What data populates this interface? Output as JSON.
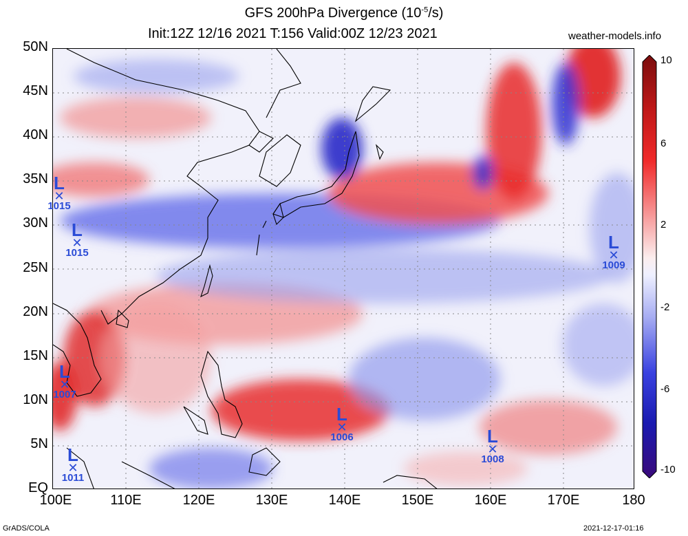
{
  "title": {
    "main": "GFS 200hPa Divergence (10",
    "exp": "-5",
    "unit_tail": "/s)",
    "line2": "Init:12Z 12/16 2021 T:156 Valid:00Z 12/23 2021"
  },
  "site": "weather-models.info",
  "lat_labels": [
    "50N",
    "45N",
    "40N",
    "35N",
    "30N",
    "25N",
    "20N",
    "15N",
    "10N",
    "5N",
    "EQ"
  ],
  "lon_labels": [
    "100E",
    "110E",
    "120E",
    "130E",
    "140E",
    "150E",
    "160E",
    "170E",
    "180"
  ],
  "colorbar": {
    "labels": [
      "10",
      "6",
      "2",
      "-2",
      "-6",
      "-10"
    ],
    "colors": [
      "#7a0d0d",
      "#d42020",
      "#f07070",
      "#f8d0d0",
      "#f4f4ff",
      "#b4b8f2",
      "#5a64e8",
      "#2020c8",
      "#3a0a7a"
    ]
  },
  "lows": [
    {
      "label": "L",
      "pressure": "1015"
    },
    {
      "label": "L",
      "pressure": "1015"
    },
    {
      "label": "L",
      "pressure": "1009"
    },
    {
      "label": "L",
      "pressure": "1007"
    },
    {
      "label": "L",
      "pressure": "1006"
    },
    {
      "label": "L",
      "pressure": "1008"
    },
    {
      "label": "L",
      "pressure": "1011"
    }
  ],
  "credits": {
    "left": "GrADS/COLA",
    "right": "2021-12-17-01:16"
  }
}
